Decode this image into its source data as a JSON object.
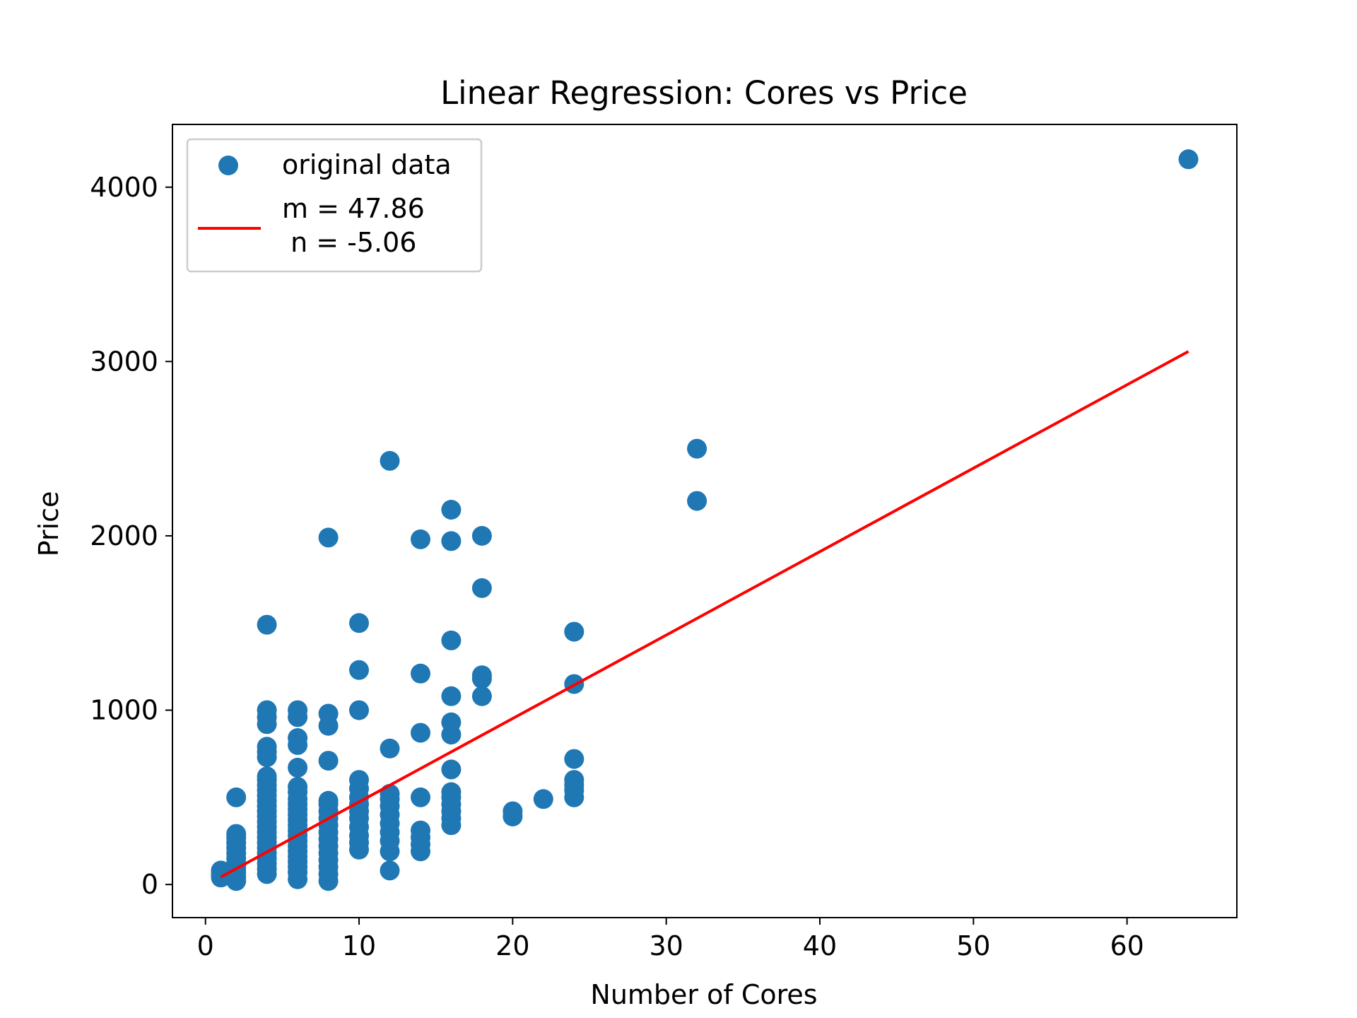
{
  "chart_data": {
    "type": "scatter",
    "title": "Linear Regression: Cores vs Price",
    "xlabel": "Number of Cores",
    "ylabel": "Price",
    "xlim": [
      -2.15,
      67.15
    ],
    "ylim": [
      -190,
      4360
    ],
    "xticks": [
      0,
      10,
      20,
      30,
      40,
      50,
      60
    ],
    "yticks": [
      0,
      1000,
      2000,
      3000,
      4000
    ],
    "grid": false,
    "legend_position": "upper-left",
    "series": [
      {
        "name": "original data",
        "kind": "scatter",
        "color": "#1f77b4",
        "points": [
          [
            1,
            40
          ],
          [
            1,
            55
          ],
          [
            1,
            70
          ],
          [
            1,
            80
          ],
          [
            2,
            20
          ],
          [
            2,
            45
          ],
          [
            2,
            70
          ],
          [
            2,
            95
          ],
          [
            2,
            120
          ],
          [
            2,
            150
          ],
          [
            2,
            180
          ],
          [
            2,
            210
          ],
          [
            2,
            240
          ],
          [
            2,
            270
          ],
          [
            2,
            290
          ],
          [
            2,
            500
          ],
          [
            4,
            60
          ],
          [
            4,
            90
          ],
          [
            4,
            120
          ],
          [
            4,
            150
          ],
          [
            4,
            180
          ],
          [
            4,
            210
          ],
          [
            4,
            240
          ],
          [
            4,
            270
          ],
          [
            4,
            300
          ],
          [
            4,
            330
          ],
          [
            4,
            360
          ],
          [
            4,
            390
          ],
          [
            4,
            420
          ],
          [
            4,
            450
          ],
          [
            4,
            480
          ],
          [
            4,
            510
          ],
          [
            4,
            540
          ],
          [
            4,
            570
          ],
          [
            4,
            600
          ],
          [
            4,
            620
          ],
          [
            4,
            730
          ],
          [
            4,
            760
          ],
          [
            4,
            790
          ],
          [
            4,
            920
          ],
          [
            4,
            960
          ],
          [
            4,
            1000
          ],
          [
            4,
            1490
          ],
          [
            6,
            30
          ],
          [
            6,
            70
          ],
          [
            6,
            100
          ],
          [
            6,
            130
          ],
          [
            6,
            160
          ],
          [
            6,
            190
          ],
          [
            6,
            220
          ],
          [
            6,
            250
          ],
          [
            6,
            280
          ],
          [
            6,
            310
          ],
          [
            6,
            340
          ],
          [
            6,
            370
          ],
          [
            6,
            400
          ],
          [
            6,
            430
          ],
          [
            6,
            460
          ],
          [
            6,
            490
          ],
          [
            6,
            530
          ],
          [
            6,
            560
          ],
          [
            6,
            670
          ],
          [
            6,
            800
          ],
          [
            6,
            840
          ],
          [
            6,
            960
          ],
          [
            6,
            1000
          ],
          [
            8,
            20
          ],
          [
            8,
            60
          ],
          [
            8,
            100
          ],
          [
            8,
            140
          ],
          [
            8,
            180
          ],
          [
            8,
            220
          ],
          [
            8,
            260
          ],
          [
            8,
            300
          ],
          [
            8,
            340
          ],
          [
            8,
            380
          ],
          [
            8,
            420
          ],
          [
            8,
            460
          ],
          [
            8,
            480
          ],
          [
            8,
            710
          ],
          [
            8,
            910
          ],
          [
            8,
            980
          ],
          [
            8,
            1990
          ],
          [
            10,
            200
          ],
          [
            10,
            240
          ],
          [
            10,
            280
          ],
          [
            10,
            330
          ],
          [
            10,
            380
          ],
          [
            10,
            420
          ],
          [
            10,
            460
          ],
          [
            10,
            500
          ],
          [
            10,
            550
          ],
          [
            10,
            600
          ],
          [
            10,
            1000
          ],
          [
            10,
            1230
          ],
          [
            10,
            1500
          ],
          [
            12,
            80
          ],
          [
            12,
            190
          ],
          [
            12,
            250
          ],
          [
            12,
            300
          ],
          [
            12,
            350
          ],
          [
            12,
            400
          ],
          [
            12,
            450
          ],
          [
            12,
            490
          ],
          [
            12,
            520
          ],
          [
            12,
            780
          ],
          [
            12,
            2430
          ],
          [
            14,
            190
          ],
          [
            14,
            230
          ],
          [
            14,
            270
          ],
          [
            14,
            310
          ],
          [
            14,
            500
          ],
          [
            14,
            870
          ],
          [
            14,
            1210
          ],
          [
            14,
            1980
          ],
          [
            16,
            340
          ],
          [
            16,
            380
          ],
          [
            16,
            420
          ],
          [
            16,
            460
          ],
          [
            16,
            500
          ],
          [
            16,
            530
          ],
          [
            16,
            660
          ],
          [
            16,
            860
          ],
          [
            16,
            930
          ],
          [
            16,
            1080
          ],
          [
            16,
            1400
          ],
          [
            16,
            1970
          ],
          [
            16,
            2150
          ],
          [
            18,
            1080
          ],
          [
            18,
            1180
          ],
          [
            18,
            1200
          ],
          [
            18,
            1700
          ],
          [
            18,
            2000
          ],
          [
            20,
            390
          ],
          [
            20,
            420
          ],
          [
            22,
            490
          ],
          [
            24,
            500
          ],
          [
            24,
            540
          ],
          [
            24,
            570
          ],
          [
            24,
            600
          ],
          [
            24,
            720
          ],
          [
            24,
            1150
          ],
          [
            24,
            1450
          ],
          [
            32,
            2200
          ],
          [
            32,
            2500
          ],
          [
            64,
            4160
          ]
        ]
      },
      {
        "name": "m = 47.86\n n = -5.06",
        "kind": "line",
        "color": "#ff0000",
        "x": [
          1,
          64
        ],
        "y": [
          42.8,
          3058
        ]
      }
    ]
  }
}
